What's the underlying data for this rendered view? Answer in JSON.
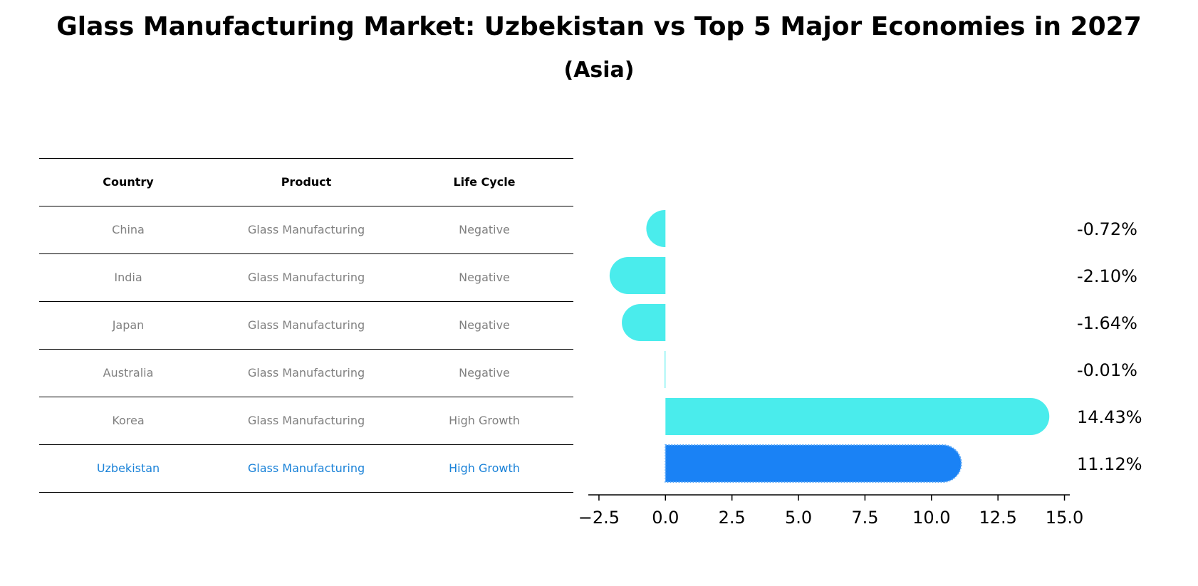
{
  "title": "Glass Manufacturing Market: Uzbekistan vs Top 5 Major Economies in 2027",
  "subtitle": "(Asia)",
  "colors": {
    "bar": "#4aecec",
    "highlight_bar": "#1a82f5",
    "muted_text": "#808080",
    "highlight_text": "#1a82d8"
  },
  "table": {
    "headers": [
      "Country",
      "Product",
      "Life Cycle"
    ],
    "rows": [
      {
        "country": "China",
        "product": "Glass Manufacturing",
        "life_cycle": "Negative"
      },
      {
        "country": "India",
        "product": "Glass Manufacturing",
        "life_cycle": "Negative"
      },
      {
        "country": "Japan",
        "product": "Glass Manufacturing",
        "life_cycle": "Negative"
      },
      {
        "country": "Australia",
        "product": "Glass Manufacturing",
        "life_cycle": "Negative"
      },
      {
        "country": "Korea",
        "product": "Glass Manufacturing",
        "life_cycle": "High Growth"
      },
      {
        "country": "Uzbekistan",
        "product": "Glass Manufacturing",
        "life_cycle": "High Growth"
      }
    ]
  },
  "chart_data": {
    "type": "bar",
    "orientation": "horizontal",
    "categories": [
      "China",
      "India",
      "Japan",
      "Australia",
      "Korea",
      "Uzbekistan"
    ],
    "values": [
      -0.72,
      -2.1,
      -1.64,
      -0.01,
      14.43,
      11.12
    ],
    "value_labels": [
      "-0.72%",
      "-2.10%",
      "-1.64%",
      "-0.01%",
      "14.43%",
      "11.12%"
    ],
    "highlight": "Uzbekistan",
    "xlim": [
      -2.9,
      15.2
    ],
    "xticks": [
      -2.5,
      0.0,
      2.5,
      5.0,
      7.5,
      10.0,
      12.5,
      15.0
    ],
    "xtick_labels": [
      "−2.5",
      "0.0",
      "2.5",
      "5.0",
      "7.5",
      "10.0",
      "12.5",
      "15.0"
    ],
    "xlabel": "",
    "ylabel": "",
    "grid": false
  }
}
